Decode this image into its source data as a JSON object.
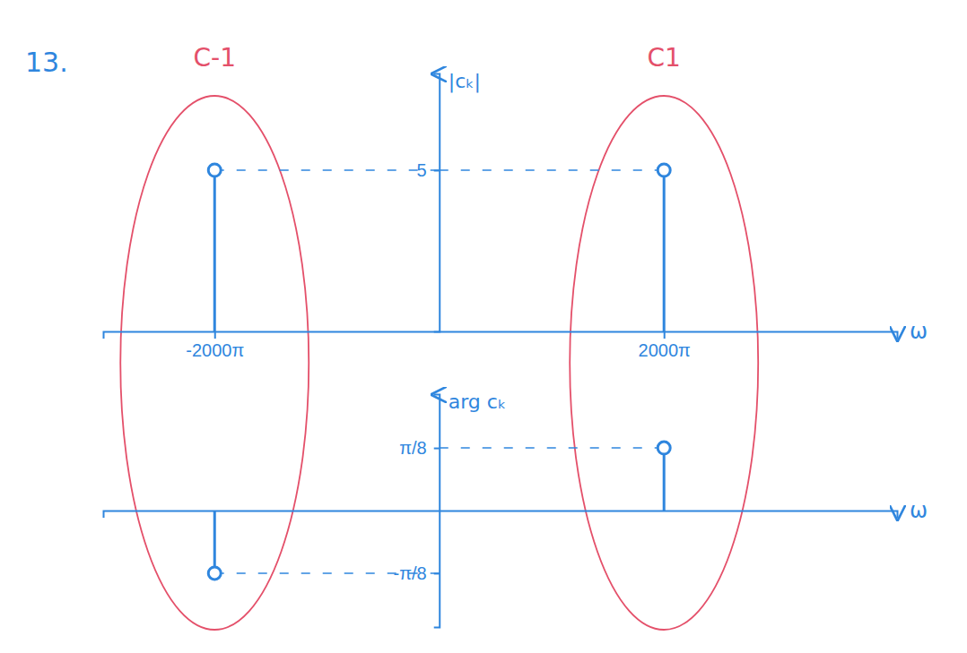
{
  "chart_data": [
    {
      "type": "stem",
      "title": "13.",
      "y_label": "|cₖ|",
      "x_label": "ω",
      "x": [
        -6283.19,
        6283.19
      ],
      "values": [
        5,
        5
      ],
      "color": "#2f86de",
      "marker": "circle",
      "xlim": [
        -9400,
        12800
      ],
      "ylim": [
        0,
        8
      ],
      "xticks": [
        {
          "value": -6283.19,
          "label": "-2000π"
        },
        {
          "value": 6283.19,
          "label": "2000π"
        }
      ],
      "yticks": [
        5
      ],
      "annotations": [
        {
          "text": "C-1",
          "x": -6283.19,
          "color": "#e4506a"
        },
        {
          "text": "C1",
          "x": 6283.19,
          "color": "#e4506a"
        }
      ]
    },
    {
      "type": "stem",
      "y_label": "arg cₖ",
      "x_label": "ω",
      "x": [
        -6283.19,
        6283.19
      ],
      "values": [
        -0.3927,
        0.3927
      ],
      "color": "#2f86de",
      "marker": "circle",
      "xlim": [
        -9400,
        12800
      ],
      "ylim": [
        -0.73,
        0.73
      ],
      "tick_labels": "y",
      "yticks": [
        {
          "value": -0.3927,
          "label": "-π/8"
        },
        {
          "value": 0.3927,
          "label": "π/8"
        }
      ]
    }
  ]
}
